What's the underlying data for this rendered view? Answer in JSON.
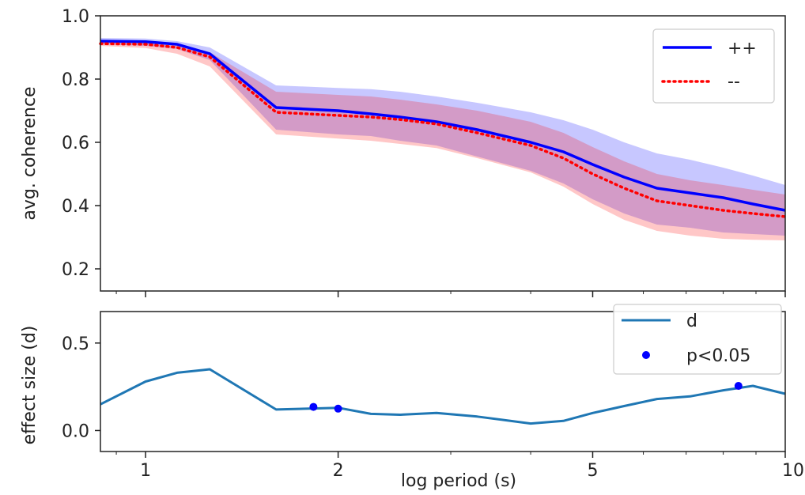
{
  "chart_data": [
    {
      "type": "line",
      "ylabel": "avg. coherence",
      "xscale": "log",
      "xlim": [
        0.85,
        10
      ],
      "ylim": [
        0.13,
        1.0
      ],
      "yticks": [
        "0.2",
        "0.4",
        "0.6",
        "0.8",
        "1.0"
      ],
      "grid": false,
      "legend_position": "upper-right",
      "colors": {
        "plus": "#0000ff",
        "minus": "#ff0000"
      },
      "x": [
        0.85,
        1.0,
        1.12,
        1.26,
        1.6,
        2.0,
        2.25,
        2.5,
        2.85,
        3.3,
        4.0,
        4.5,
        5.0,
        5.6,
        6.3,
        7.1,
        8.0,
        8.9,
        10.0
      ],
      "series": [
        {
          "name": "++",
          "style": "solid",
          "values": [
            0.92,
            0.918,
            0.91,
            0.88,
            0.71,
            0.7,
            0.69,
            0.68,
            0.665,
            0.64,
            0.6,
            0.57,
            0.53,
            0.49,
            0.455,
            0.44,
            0.425,
            0.405,
            0.385
          ],
          "band_low": [
            0.91,
            0.905,
            0.895,
            0.86,
            0.64,
            0.625,
            0.62,
            0.605,
            0.59,
            0.555,
            0.51,
            0.47,
            0.42,
            0.375,
            0.34,
            0.33,
            0.315,
            0.31,
            0.305
          ],
          "band_high": [
            0.93,
            0.928,
            0.92,
            0.9,
            0.78,
            0.772,
            0.768,
            0.76,
            0.745,
            0.725,
            0.695,
            0.67,
            0.64,
            0.6,
            0.565,
            0.545,
            0.52,
            0.495,
            0.465
          ]
        },
        {
          "name": "--",
          "style": "dotted",
          "values": [
            0.912,
            0.91,
            0.9,
            0.87,
            0.695,
            0.685,
            0.68,
            0.672,
            0.658,
            0.63,
            0.59,
            0.55,
            0.5,
            0.455,
            0.415,
            0.4,
            0.385,
            0.375,
            0.365
          ],
          "band_low": [
            0.905,
            0.898,
            0.88,
            0.84,
            0.625,
            0.612,
            0.605,
            0.595,
            0.582,
            0.55,
            0.505,
            0.46,
            0.405,
            0.355,
            0.32,
            0.305,
            0.295,
            0.292,
            0.29
          ],
          "band_high": [
            0.92,
            0.918,
            0.912,
            0.885,
            0.76,
            0.75,
            0.745,
            0.735,
            0.72,
            0.7,
            0.665,
            0.63,
            0.585,
            0.54,
            0.5,
            0.48,
            0.465,
            0.45,
            0.435
          ]
        }
      ]
    },
    {
      "type": "line",
      "xlabel": "log period (s)",
      "ylabel": "effect size (d)",
      "xscale": "log",
      "xlim": [
        0.85,
        10
      ],
      "ylim": [
        -0.12,
        0.68
      ],
      "yticks": [
        "0.0",
        "0.5"
      ],
      "xticks": [
        {
          "value": 1,
          "label": "1"
        },
        {
          "value": 2,
          "label": "2"
        },
        {
          "value": 5,
          "label": "5"
        },
        {
          "value": 10,
          "label": "10"
        }
      ],
      "grid": false,
      "legend_position": "upper-right",
      "colors": {
        "line": "#1f77b4",
        "points": "#0000ff"
      },
      "x": [
        0.85,
        1.0,
        1.12,
        1.26,
        1.6,
        2.0,
        2.25,
        2.5,
        2.85,
        3.3,
        4.0,
        4.5,
        5.0,
        5.6,
        6.3,
        7.1,
        8.0,
        8.9,
        10.0
      ],
      "series": [
        {
          "name": "d",
          "style": "line",
          "values": [
            0.15,
            0.28,
            0.33,
            0.35,
            0.12,
            0.13,
            0.095,
            0.09,
            0.1,
            0.08,
            0.04,
            0.055,
            0.1,
            0.14,
            0.18,
            0.195,
            0.23,
            0.255,
            0.21
          ]
        },
        {
          "name": "p<0.05",
          "style": "points",
          "x": [
            1.83,
            2.0,
            8.45
          ],
          "values": [
            0.135,
            0.125,
            0.255
          ]
        }
      ]
    }
  ]
}
